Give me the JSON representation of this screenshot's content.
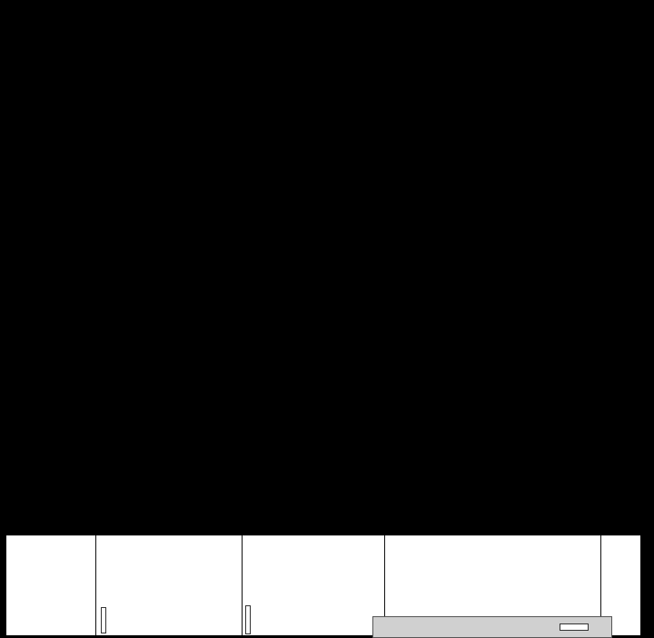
{
  "colors": {
    "background": "#000000",
    "cabinet": "#ffffff",
    "hood": "#d0d0d0"
  }
}
